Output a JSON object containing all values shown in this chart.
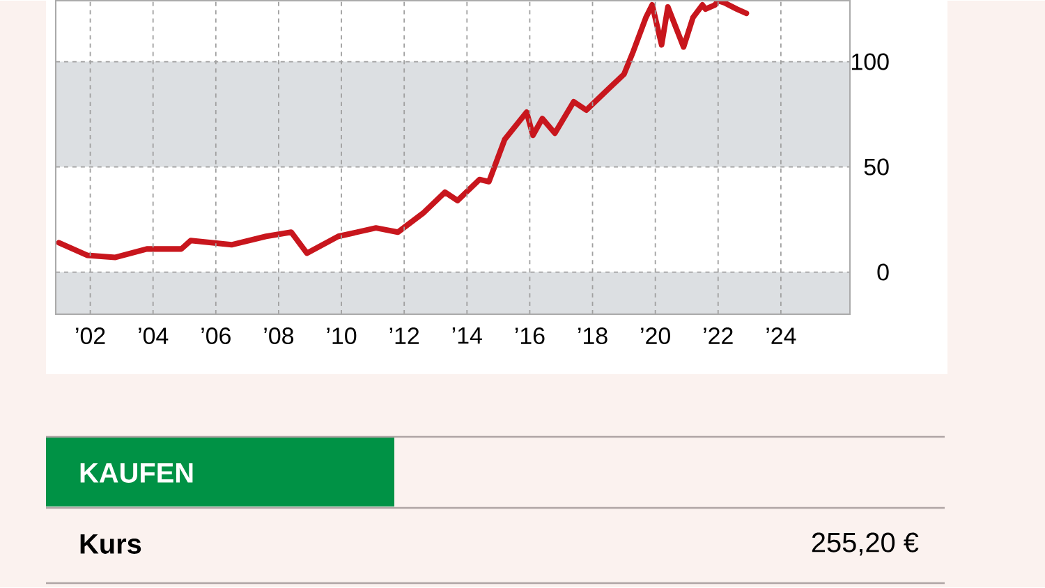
{
  "chart_data": {
    "type": "line",
    "x": [
      2001.0,
      2001.9,
      2002.8,
      2003.8,
      2004.9,
      2005.2,
      2006.5,
      2007.6,
      2008.4,
      2008.9,
      2009.9,
      2011.1,
      2011.8,
      2012.6,
      2013.3,
      2013.7,
      2014.4,
      2014.7,
      2015.2,
      2015.9,
      2016.1,
      2016.4,
      2016.8,
      2017.4,
      2017.8,
      2018.5,
      2019.0,
      2019.3,
      2019.7,
      2019.9,
      2020.2,
      2020.4,
      2020.9,
      2021.2,
      2021.5,
      2021.6,
      2021.9,
      2022.0,
      2022.2,
      2022.6,
      2022.9
    ],
    "series": [
      {
        "color": "#c8161d",
        "values": [
          14,
          8,
          7,
          11,
          11,
          15,
          13,
          17,
          19,
          9,
          17,
          21,
          19,
          28,
          38,
          34,
          44,
          43,
          63,
          76,
          65,
          73,
          66,
          81,
          77,
          87,
          94,
          105,
          121,
          127,
          108,
          126,
          107,
          121,
          127,
          125,
          127,
          129,
          128,
          125,
          123
        ]
      }
    ],
    "xlim": [
      2000.9,
      2026.2
    ],
    "ylim": [
      -20,
      129
    ],
    "xticks": [
      {
        "value": 2002,
        "label": "’02"
      },
      {
        "value": 2004,
        "label": "’04"
      },
      {
        "value": 2006,
        "label": "’06"
      },
      {
        "value": 2008,
        "label": "’08"
      },
      {
        "value": 2010,
        "label": "’10"
      },
      {
        "value": 2012,
        "label": "’12"
      },
      {
        "value": 2014,
        "label": "’14"
      },
      {
        "value": 2016,
        "label": "’16"
      },
      {
        "value": 2018,
        "label": "’18"
      },
      {
        "value": 2020,
        "label": "’20"
      },
      {
        "value": 2022,
        "label": "’22"
      },
      {
        "value": 2024,
        "label": "’24"
      }
    ],
    "yticks": [
      0,
      50,
      100
    ],
    "bands": [
      {
        "axis": "y",
        "from": -20,
        "to": 0,
        "color": "#dcdfe2"
      },
      {
        "axis": "y",
        "from": 50,
        "to": 100,
        "color": "#dcdfe2"
      }
    ],
    "grid": true,
    "line_style": "solid",
    "marker": "none",
    "annotations": [
      "KAUFEN",
      "Kurs",
      "255,20 €"
    ]
  }
}
